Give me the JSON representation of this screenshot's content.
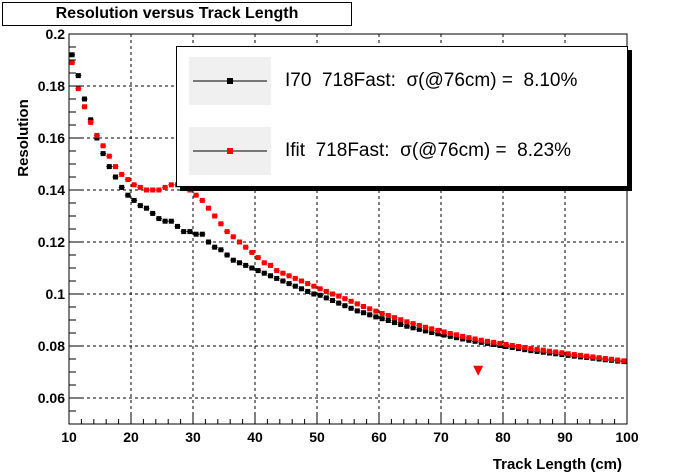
{
  "title": "Resolution versus Track Length",
  "chart_data": {
    "type": "scatter",
    "title": "Resolution versus Track Length",
    "xlabel": "Track Length (cm)",
    "ylabel": "Resolution",
    "xlim": [
      10,
      100
    ],
    "ylim": [
      0.05,
      0.2
    ],
    "x_ticks": [
      "10",
      "20",
      "30",
      "40",
      "50",
      "60",
      "70",
      "80",
      "90",
      "100"
    ],
    "y_ticks": [
      "0.06",
      "0.08",
      "0.1",
      "0.12",
      "0.14",
      "0.16",
      "0.18",
      "0.2"
    ],
    "grid": true,
    "legend_position": "top-right",
    "series": [
      {
        "name": "I70  718Fast:  σ(@76cm) =  8.10%",
        "color": "#000000",
        "marker": "square",
        "x": [
          10.5,
          11.5,
          12.5,
          13.5,
          14.5,
          15.5,
          16.5,
          17.5,
          18.5,
          19.5,
          20.5,
          21.5,
          22.5,
          23.5,
          24.5,
          25.5,
          26.5,
          27.5,
          28.5,
          29.5,
          30.5,
          31.5,
          32.5,
          33.5,
          34.5,
          35.5,
          36.5,
          37.5,
          38.5,
          39.5,
          40.5,
          41.5,
          42.5,
          43.5,
          44.5,
          45.5,
          46.5,
          47.5,
          48.5,
          49.5,
          50.5,
          51.5,
          52.5,
          53.5,
          54.5,
          55.5,
          56.5,
          57.5,
          58.5,
          59.5,
          60.5,
          61.5,
          62.5,
          63.5,
          64.5,
          65.5,
          66.5,
          67.5,
          68.5,
          69.5,
          70.5,
          71.5,
          72.5,
          73.5,
          74.5,
          75.5,
          76.5,
          77.5,
          78.5,
          79.5,
          80.5,
          81.5,
          82.5,
          83.5,
          84.5,
          85.5,
          86.5,
          87.5,
          88.5,
          89.5,
          90.5,
          91.5,
          92.5,
          93.5,
          94.5,
          95.5,
          96.5,
          97.5,
          98.5,
          99.5
        ],
        "y": [
          0.192,
          0.184,
          0.175,
          0.167,
          0.16,
          0.154,
          0.149,
          0.145,
          0.141,
          0.138,
          0.136,
          0.134,
          0.133,
          0.131,
          0.129,
          0.128,
          0.128,
          0.126,
          0.124,
          0.124,
          0.123,
          0.123,
          0.12,
          0.118,
          0.117,
          0.115,
          0.113,
          0.112,
          0.111,
          0.11,
          0.109,
          0.108,
          0.107,
          0.106,
          0.105,
          0.104,
          0.103,
          0.102,
          0.101,
          0.1,
          0.0995,
          0.0985,
          0.0975,
          0.0965,
          0.0955,
          0.0945,
          0.0935,
          0.0928,
          0.092,
          0.0912,
          0.0905,
          0.0898,
          0.089,
          0.0883,
          0.0876,
          0.087,
          0.0864,
          0.0858,
          0.0852,
          0.0847,
          0.0842,
          0.0837,
          0.0832,
          0.0827,
          0.0822,
          0.0818,
          0.0814,
          0.081,
          0.0806,
          0.0802,
          0.0798,
          0.0794,
          0.079,
          0.0786,
          0.0782,
          0.0779,
          0.0776,
          0.0773,
          0.077,
          0.0767,
          0.0764,
          0.0761,
          0.0758,
          0.0756,
          0.0753,
          0.075,
          0.0747,
          0.0745,
          0.0742,
          0.074
        ]
      },
      {
        "name": "Ifit  718Fast:  σ(@76cm) =  8.23%",
        "color": "#ff0000",
        "marker": "square",
        "x": [
          10.5,
          11.5,
          12.5,
          13.5,
          14.5,
          15.5,
          16.5,
          17.5,
          18.5,
          19.5,
          20.5,
          21.5,
          22.5,
          23.5,
          24.5,
          25.5,
          26.5,
          27.5,
          28.5,
          29.5,
          30.5,
          31.5,
          32.5,
          33.5,
          34.5,
          35.5,
          36.5,
          37.5,
          38.5,
          39.5,
          40.5,
          41.5,
          42.5,
          43.5,
          44.5,
          45.5,
          46.5,
          47.5,
          48.5,
          49.5,
          50.5,
          51.5,
          52.5,
          53.5,
          54.5,
          55.5,
          56.5,
          57.5,
          58.5,
          59.5,
          60.5,
          61.5,
          62.5,
          63.5,
          64.5,
          65.5,
          66.5,
          67.5,
          68.5,
          69.5,
          70.5,
          71.5,
          72.5,
          73.5,
          74.5,
          75.5,
          76.5,
          77.5,
          78.5,
          79.5,
          80.5,
          81.5,
          82.5,
          83.5,
          84.5,
          85.5,
          86.5,
          87.5,
          88.5,
          89.5,
          90.5,
          91.5,
          92.5,
          93.5,
          94.5,
          95.5,
          96.5,
          97.5,
          98.5,
          99.5
        ],
        "y": [
          0.189,
          0.179,
          0.172,
          0.166,
          0.161,
          0.157,
          0.153,
          0.149,
          0.146,
          0.144,
          0.142,
          0.141,
          0.14,
          0.14,
          0.14,
          0.141,
          0.142,
          0.142,
          0.142,
          0.14,
          0.138,
          0.136,
          0.133,
          0.13,
          0.127,
          0.124,
          0.122,
          0.12,
          0.118,
          0.116,
          0.114,
          0.112,
          0.111,
          0.109,
          0.108,
          0.107,
          0.106,
          0.105,
          0.104,
          0.103,
          0.102,
          0.101,
          0.1,
          0.0992,
          0.0982,
          0.0972,
          0.0962,
          0.0952,
          0.0943,
          0.0934,
          0.0925,
          0.0917,
          0.0909,
          0.0901,
          0.0893,
          0.0886,
          0.0879,
          0.0872,
          0.0866,
          0.086,
          0.0854,
          0.0848,
          0.0843,
          0.0837,
          0.0832,
          0.0827,
          0.0822,
          0.0818,
          0.0814,
          0.081,
          0.0806,
          0.0802,
          0.0798,
          0.0794,
          0.079,
          0.0787,
          0.0784,
          0.078,
          0.0777,
          0.0774,
          0.077,
          0.0767,
          0.0764,
          0.0761,
          0.0758,
          0.0755,
          0.0752,
          0.0749,
          0.0746,
          0.0743
        ]
      }
    ],
    "annotations": [
      {
        "marker": "triangle-down",
        "color": "#ff0000",
        "x": 76,
        "y": 0.0705
      }
    ]
  }
}
